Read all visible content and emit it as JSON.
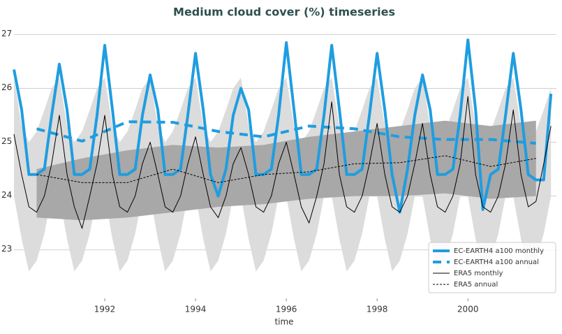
{
  "chart_data": {
    "type": "line",
    "title": "Medium cloud cover (%) timeseries",
    "xlabel": "time",
    "xlim": [
      1990.0,
      2001.95
    ],
    "ylim": [
      22.1,
      27.2
    ],
    "xticks": [
      1992,
      1994,
      1996,
      1998,
      2000
    ],
    "yticks": [
      23,
      24,
      25,
      26,
      27
    ],
    "grid": true,
    "legend": "lower right",
    "x": [
      1990,
      1990.17,
      1990.33,
      1990.5,
      1990.67,
      1990.83,
      1991,
      1991.17,
      1991.33,
      1991.5,
      1991.67,
      1991.83,
      1992,
      1992.17,
      1992.33,
      1992.5,
      1992.67,
      1992.83,
      1993,
      1993.17,
      1993.33,
      1993.5,
      1993.67,
      1993.83,
      1994,
      1994.17,
      1994.33,
      1994.5,
      1994.67,
      1994.83,
      1995,
      1995.17,
      1995.33,
      1995.5,
      1995.67,
      1995.83,
      1996,
      1996.17,
      1996.33,
      1996.5,
      1996.67,
      1996.83,
      1997,
      1997.17,
      1997.33,
      1997.5,
      1997.67,
      1997.83,
      1998,
      1998.17,
      1998.33,
      1998.5,
      1998.67,
      1998.83,
      1999,
      1999.17,
      1999.33,
      1999.5,
      1999.67,
      1999.83,
      2000,
      2000.17,
      2000.33,
      2000.5,
      2000.67,
      2000.83,
      2001,
      2001.17,
      2001.33,
      2001.5,
      2001.67,
      2001.83
    ],
    "bands": [
      {
        "color": "#dcdcdc",
        "upper": [
          26.2,
          25.3,
          25.0,
          25.2,
          25.6,
          26.0,
          26.2,
          25.3,
          25.0,
          25.2,
          25.6,
          26.0,
          26.2,
          25.3,
          25.0,
          25.2,
          25.6,
          26.0,
          26.2,
          25.3,
          25.0,
          25.2,
          25.6,
          26.0,
          26.2,
          25.3,
          25.0,
          25.2,
          25.6,
          26.0,
          26.2,
          25.3,
          25.0,
          25.2,
          25.6,
          26.0,
          26.2,
          25.3,
          25.0,
          25.2,
          25.6,
          26.0,
          26.2,
          25.3,
          25.0,
          25.2,
          25.6,
          26.0,
          26.2,
          25.3,
          25.0,
          25.2,
          25.6,
          26.0,
          26.2,
          25.3,
          25.0,
          25.2,
          25.6,
          26.0,
          26.2,
          25.3,
          25.0,
          25.2,
          25.6,
          26.0,
          26.2,
          25.3,
          25.0,
          25.2,
          25.6,
          26.0
        ],
        "lower": [
          24.0,
          23.2,
          22.6,
          22.8,
          23.3,
          24.0,
          24.0,
          23.2,
          22.6,
          22.8,
          23.3,
          24.0,
          24.0,
          23.2,
          22.6,
          22.8,
          23.3,
          24.0,
          24.0,
          23.2,
          22.6,
          22.8,
          23.3,
          24.0,
          24.0,
          23.2,
          22.6,
          22.8,
          23.3,
          24.0,
          24.0,
          23.2,
          22.6,
          22.8,
          23.3,
          24.0,
          24.0,
          23.2,
          22.6,
          22.8,
          23.3,
          24.0,
          24.0,
          23.2,
          22.6,
          22.8,
          23.3,
          24.0,
          24.0,
          23.2,
          22.6,
          22.8,
          23.3,
          24.0,
          24.0,
          23.2,
          22.6,
          22.8,
          23.3,
          24.0,
          24.0,
          23.2,
          22.6,
          22.8,
          23.3,
          24.0,
          24.0,
          23.2,
          22.6,
          22.8,
          23.3,
          24.0
        ]
      },
      {
        "color": "#a8a8a8",
        "x": [
          1990.5,
          1991.5,
          1992.5,
          1993.5,
          1994.5,
          1995.5,
          1996.5,
          1997.5,
          1998.5,
          1999.5,
          2000.5,
          2001.5
        ],
        "upper": [
          24.5,
          24.7,
          24.85,
          24.95,
          24.9,
          24.95,
          25.1,
          25.2,
          25.3,
          25.4,
          25.3,
          25.4
        ],
        "lower": [
          23.6,
          23.55,
          23.6,
          23.7,
          23.8,
          23.85,
          23.95,
          24.0,
          24.0,
          24.05,
          23.95,
          24.0
        ]
      }
    ],
    "series": [
      {
        "name": "EC-EARTH4 a100 monthly",
        "color": "#1f9de0",
        "width": 4,
        "style": "solid",
        "values": [
          26.35,
          25.6,
          24.4,
          24.4,
          24.5,
          25.5,
          26.45,
          25.6,
          24.4,
          24.4,
          24.5,
          25.5,
          26.8,
          25.6,
          24.4,
          24.4,
          24.5,
          25.5,
          26.25,
          25.6,
          24.4,
          24.4,
          24.5,
          25.5,
          26.65,
          25.6,
          24.4,
          24.0,
          24.5,
          25.5,
          26.0,
          25.6,
          24.4,
          24.4,
          24.5,
          25.5,
          26.85,
          25.6,
          24.4,
          24.4,
          24.5,
          25.5,
          26.8,
          25.6,
          24.4,
          24.4,
          24.5,
          25.5,
          26.65,
          25.6,
          24.4,
          23.7,
          24.5,
          25.5,
          26.25,
          25.6,
          24.4,
          24.4,
          24.5,
          25.5,
          26.9,
          25.6,
          23.75,
          24.4,
          24.5,
          25.5,
          26.65,
          25.6,
          24.4,
          24.3,
          24.3,
          25.9
        ]
      },
      {
        "name": "EC-EARTH4 a100 annual",
        "color": "#1f9de0",
        "width": 4,
        "style": "dashed",
        "x": [
          1990.5,
          1991.5,
          1992.5,
          1993.5,
          1994.5,
          1995.5,
          1996.5,
          1997.5,
          1998.5,
          1999.5,
          2000.5,
          2001.5
        ],
        "values": [
          25.25,
          25.02,
          25.38,
          25.37,
          25.2,
          25.1,
          25.3,
          25.25,
          25.1,
          25.05,
          25.05,
          24.98
        ]
      },
      {
        "name": "ERA5 monthly",
        "color": "#000000",
        "width": 1,
        "style": "solid",
        "values": [
          25.15,
          24.4,
          23.8,
          23.7,
          24.0,
          24.6,
          25.5,
          24.4,
          23.8,
          23.4,
          24.0,
          24.6,
          25.5,
          24.4,
          23.8,
          23.7,
          24.0,
          24.6,
          25.0,
          24.4,
          23.8,
          23.7,
          24.0,
          24.6,
          25.1,
          24.4,
          23.8,
          23.6,
          24.0,
          24.6,
          24.9,
          24.4,
          23.8,
          23.7,
          24.0,
          24.6,
          25.0,
          24.4,
          23.8,
          23.5,
          24.0,
          24.6,
          25.75,
          24.4,
          23.8,
          23.7,
          24.0,
          24.6,
          25.35,
          24.4,
          23.8,
          23.7,
          24.0,
          24.6,
          25.35,
          24.4,
          23.8,
          23.7,
          24.0,
          24.6,
          25.85,
          24.4,
          23.8,
          23.7,
          24.0,
          24.6,
          25.6,
          24.4,
          23.8,
          23.9,
          24.6,
          25.3
        ]
      },
      {
        "name": "ERA5 annual",
        "color": "#000000",
        "width": 1,
        "style": "dashed",
        "x": [
          1990.5,
          1991.5,
          1992.5,
          1993.5,
          1994.5,
          1995.5,
          1996.5,
          1997.5,
          1998.5,
          1999.5,
          2000.5,
          2001.5
        ],
        "values": [
          24.4,
          24.25,
          24.25,
          24.5,
          24.25,
          24.4,
          24.45,
          24.6,
          24.62,
          24.75,
          24.55,
          24.7
        ]
      }
    ]
  }
}
